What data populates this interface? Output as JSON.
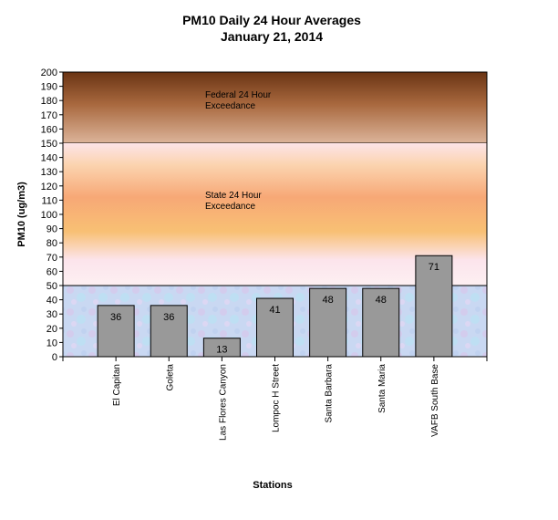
{
  "chart_data": {
    "type": "bar",
    "title": "PM10 Daily 24 Hour Averages",
    "subtitle": "January 21, 2014",
    "xlabel": "Stations",
    "ylabel": "PM10 (ug/m3)",
    "ylim": [
      0,
      200
    ],
    "yticks": [
      0,
      10,
      20,
      30,
      40,
      50,
      60,
      70,
      80,
      90,
      100,
      110,
      120,
      130,
      140,
      150,
      160,
      170,
      180,
      190,
      200
    ],
    "categories": [
      "El Capitan",
      "Goleta",
      "Las Flores Canyon",
      "Lompoc H Street",
      "Santa Barbara",
      "Santa Maria",
      "VAFB South Base"
    ],
    "values": [
      36,
      36,
      13,
      41,
      48,
      48,
      71
    ],
    "bands": [
      {
        "label_line1": "Federal 24 Hour",
        "label_line2": "Exceedance",
        "from": 150,
        "to": 200
      },
      {
        "label_line1": "State 24 Hour",
        "label_line2": "Exceedance",
        "from": 50,
        "to": 150
      }
    ],
    "bar_color": "#999999",
    "grid": false,
    "legend": "none"
  }
}
